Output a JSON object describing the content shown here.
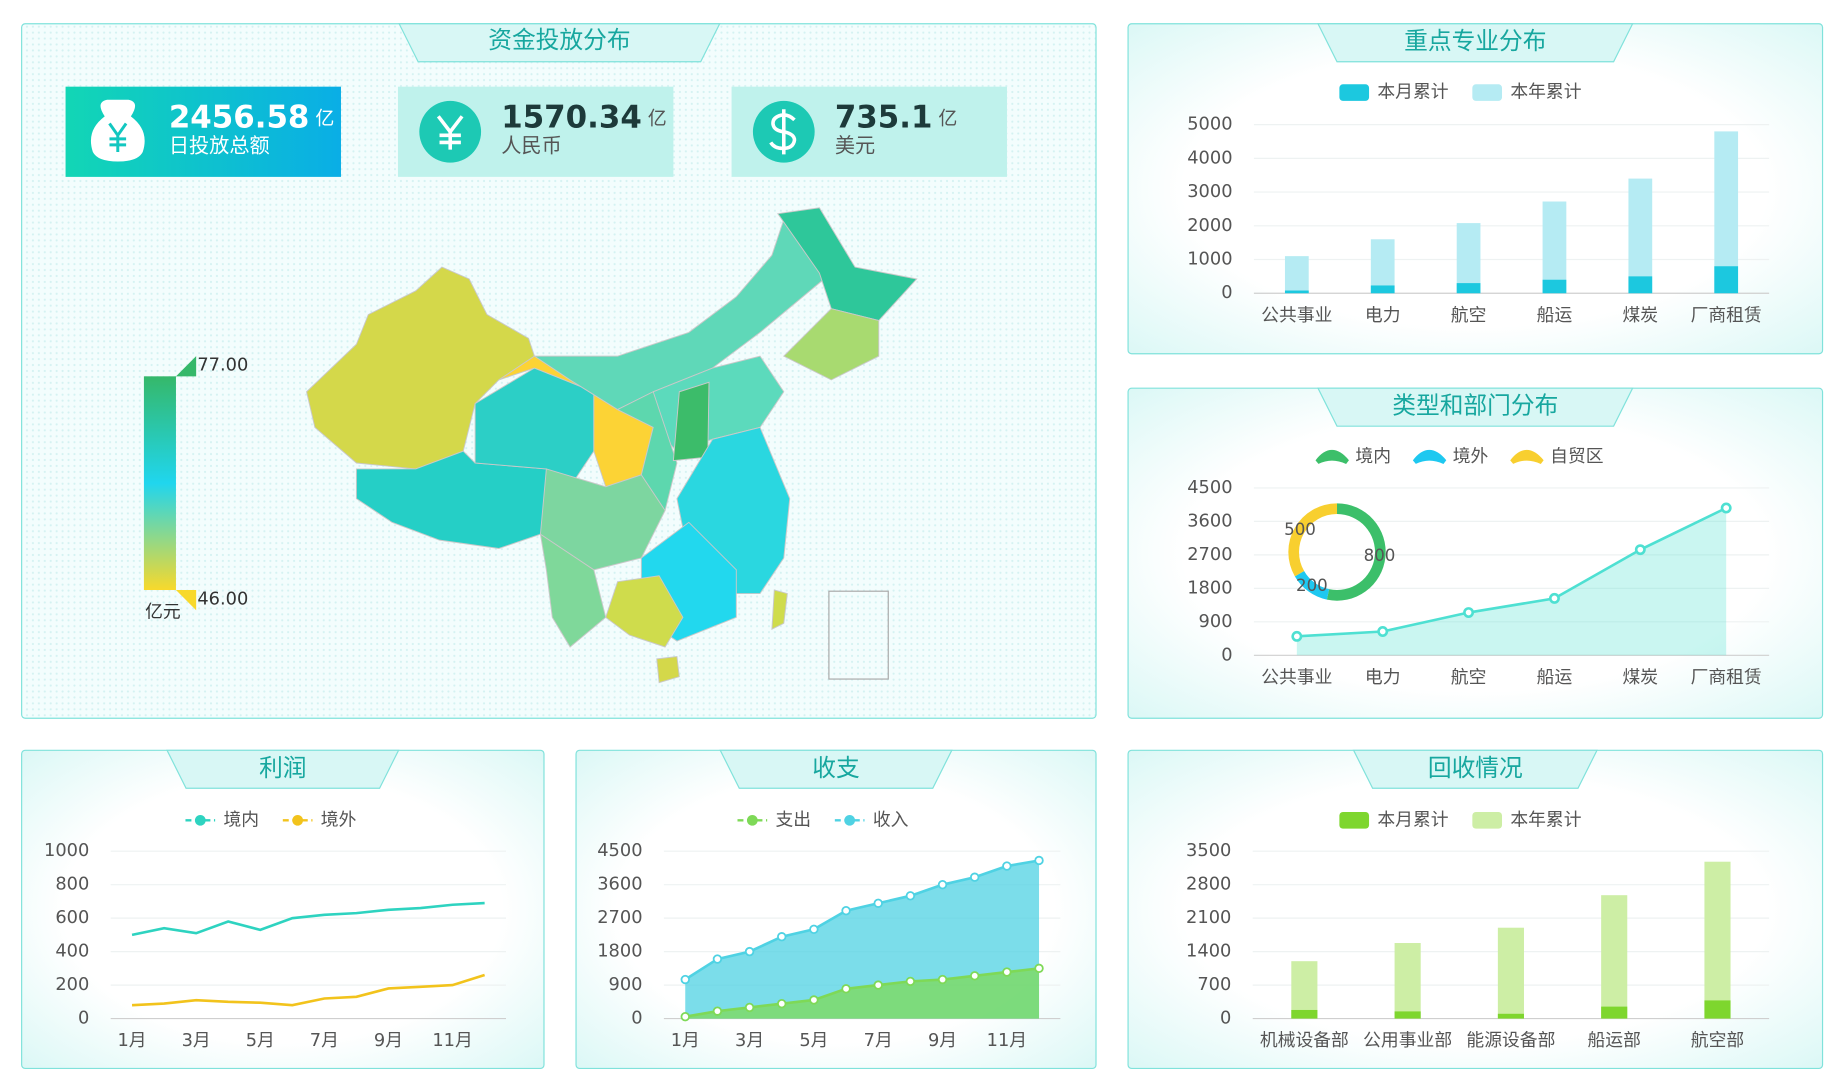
{
  "map_panel": {
    "title": "资金投放分布",
    "stats": [
      {
        "value": 2456.58,
        "unit": "亿",
        "label": "日投放总额"
      },
      {
        "value": 1570.34,
        "unit": "亿",
        "label": "人民币"
      },
      {
        "value": 735.1,
        "unit": "亿",
        "label": "美元"
      }
    ],
    "visual_map": {
      "max": "77.00",
      "min": "46.00",
      "unit": "亿元"
    }
  },
  "chart_data": [
    {
      "type": "bar",
      "title": "重点专业分布",
      "categories": [
        "公共事业",
        "电力",
        "航空",
        "船运",
        "煤炭",
        "厂商租赁"
      ],
      "series": [
        {
          "name": "本月累计",
          "color": "#1cc8df",
          "values": [
            80,
            230,
            300,
            400,
            500,
            800
          ]
        },
        {
          "name": "本年累计",
          "color": "#b5ebf3",
          "values": [
            1100,
            1600,
            2080,
            2720,
            3400,
            4800
          ]
        }
      ],
      "ylim": [
        0,
        5000
      ],
      "yticks": [
        0,
        1000,
        2000,
        3000,
        4000,
        5000
      ],
      "grid": true
    },
    {
      "type": "line",
      "title": "类型和部门分布",
      "area": true,
      "categories": [
        "公共事业",
        "电力",
        "航空",
        "船运",
        "煤炭",
        "厂商租赁"
      ],
      "series": [
        {
          "color": "#4ee0d2",
          "values": [
            510,
            640,
            1150,
            1530,
            2840,
            3960
          ]
        }
      ],
      "ylim": [
        0,
        4500
      ],
      "yticks": [
        0,
        900,
        1800,
        2700,
        3600,
        4500
      ],
      "grid": true
    },
    {
      "type": "pie",
      "series": [
        {
          "name": "境内",
          "color": "#3cbf6a",
          "values": [
            800
          ]
        },
        {
          "name": "境外",
          "color": "#1ec8f0",
          "values": [
            200
          ]
        },
        {
          "name": "自贸区",
          "color": "#f8cf2f",
          "values": [
            500
          ]
        }
      ]
    },
    {
      "type": "line",
      "title": "利润",
      "categories": [
        "1月",
        null,
        "3月",
        null,
        "5月",
        null,
        "7月",
        null,
        "9月",
        null,
        "11月",
        null
      ],
      "series": [
        {
          "name": "境内",
          "color": "#2ed3c0",
          "values": [
            500,
            540,
            510,
            580,
            530,
            600,
            620,
            630,
            650,
            660,
            680,
            690
          ]
        },
        {
          "name": "境外",
          "color": "#f2c31c",
          "values": [
            80,
            90,
            110,
            100,
            95,
            80,
            120,
            130,
            180,
            190,
            200,
            260
          ]
        }
      ],
      "ylim": [
        0,
        1000
      ],
      "yticks": [
        0,
        200,
        400,
        600,
        800,
        1000
      ],
      "grid": true
    },
    {
      "type": "line",
      "title": "收支",
      "area": true,
      "categories": [
        "1月",
        null,
        "3月",
        null,
        "5月",
        null,
        "7月",
        null,
        "9月",
        null,
        "11月",
        null
      ],
      "series": [
        {
          "name": "支出",
          "color": "#7ed957",
          "values": [
            50,
            200,
            300,
            400,
            500,
            800,
            900,
            1000,
            1050,
            1150,
            1250,
            1350
          ]
        },
        {
          "name": "收入",
          "color": "#4fd2e3",
          "values": [
            1050,
            1600,
            1800,
            2200,
            2400,
            2900,
            3100,
            3300,
            3600,
            3800,
            4100,
            4250
          ]
        }
      ],
      "ylim": [
        0,
        4500
      ],
      "yticks": [
        0,
        900,
        1800,
        2700,
        3600,
        4500
      ],
      "grid": true
    },
    {
      "type": "bar",
      "title": "回收情况",
      "categories": [
        "机械设备部",
        "公用事业部",
        "能源设备部",
        "船运部",
        "航空部"
      ],
      "series": [
        {
          "name": "本月累计",
          "color": "#7ed62e",
          "values": [
            180,
            150,
            100,
            250,
            380
          ]
        },
        {
          "name": "本年累计",
          "color": "#cdeea5",
          "values": [
            1200,
            1580,
            1900,
            2580,
            3280
          ]
        }
      ],
      "ylim": [
        0,
        3500
      ],
      "yticks": [
        0,
        700,
        1400,
        2100,
        2800,
        3500
      ],
      "grid": true
    }
  ]
}
